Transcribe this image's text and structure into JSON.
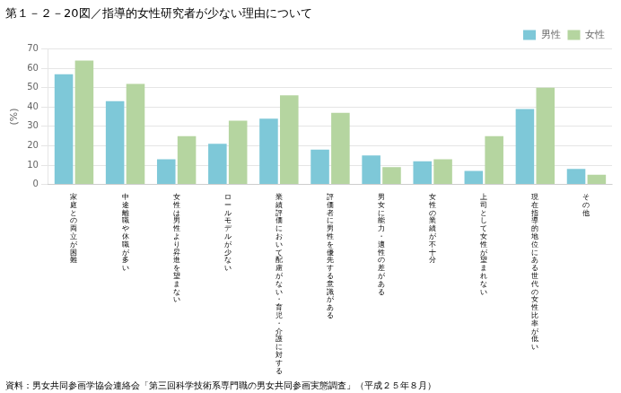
{
  "chart_data": {
    "type": "bar",
    "title": "第１－２－20図／指導的女性研究者が少ない理由について",
    "y_label": "(%)",
    "annotations": [
      "資料：男女共同参画学協会連絡会「第三回科学技術系専門職の男女共同参画実態調査」（平成２５年８月）"
    ],
    "categories": [
      "家庭との両立が困難",
      "中途離職や休職が多い",
      "女性は男性より昇進を望まない",
      "ロールモデルが少ない",
      "業績評価において配慮がない・育児・介護に対する",
      "評価者に男性を優先する意識がある",
      "男女に能力・適性の差がある",
      "女性の業績が不十分",
      "上司として女性が望まれない",
      "現在指導的地位にある世代の女性比率が低い",
      "その他"
    ],
    "series": [
      {
        "name": "男性",
        "color": "#7EC8D8",
        "values": [
          57,
          43,
          13,
          21,
          34,
          18,
          15,
          12,
          7,
          39,
          8
        ]
      },
      {
        "name": "女性",
        "color": "#B5D5A0",
        "values": [
          64,
          52,
          25,
          33,
          46,
          37,
          9,
          13,
          25,
          50,
          5
        ]
      }
    ],
    "ylim": [
      0,
      70
    ],
    "yticks": [
      0,
      10,
      20,
      30,
      40,
      50,
      60,
      70
    ],
    "grid": true,
    "legend": "upper right"
  }
}
